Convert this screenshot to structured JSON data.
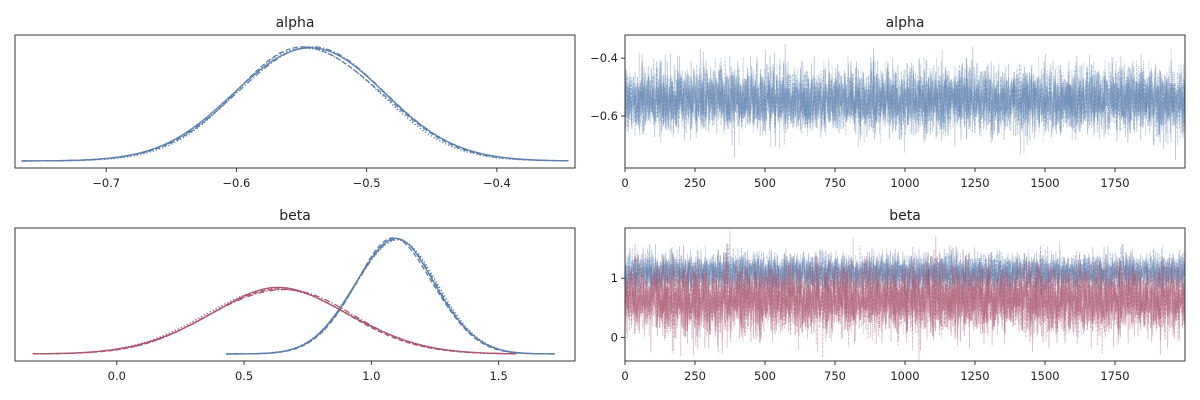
{
  "colors": {
    "blue": "#5a7fae",
    "red": "#a9566e",
    "axis": "#222222"
  },
  "chart_data": [
    {
      "type": "line",
      "panel": "kde",
      "title": "alpha",
      "xlim": [
        -0.77,
        -0.34
      ],
      "xticks": [
        -0.7,
        -0.6,
        -0.5,
        -0.4
      ],
      "xtick_labels": [
        "−0.7",
        "−0.6",
        "−0.5",
        "−0.4"
      ],
      "yticks": [],
      "ytick_labels": [],
      "grid": false,
      "series": [
        {
          "color": "blue",
          "chain_styles": [
            "solid",
            "dashed",
            "dotted",
            "dashdot"
          ],
          "mean": -0.545,
          "sd": 0.055,
          "x_range": [
            -0.765,
            -0.345
          ]
        }
      ]
    },
    {
      "type": "line",
      "panel": "trace",
      "title": "alpha",
      "xlim": [
        0,
        2000
      ],
      "ylim": [
        -0.78,
        -0.32
      ],
      "xticks": [
        0,
        250,
        500,
        750,
        1000,
        1250,
        1500,
        1750
      ],
      "xtick_labels": [
        "0",
        "250",
        "500",
        "750",
        "1000",
        "1250",
        "1500",
        "1750"
      ],
      "yticks": [
        -0.6,
        -0.4
      ],
      "ytick_labels": [
        "−0.6",
        "−0.4"
      ],
      "grid": false,
      "n_draws": 2000,
      "series": [
        {
          "color": "blue",
          "chain_styles": [
            "solid",
            "dashed",
            "dotted",
            "dashdot"
          ],
          "mean": -0.545,
          "sd": 0.055
        }
      ]
    },
    {
      "type": "line",
      "panel": "kde",
      "title": "beta",
      "xlim": [
        -0.4,
        1.8
      ],
      "xticks": [
        0.0,
        0.5,
        1.0,
        1.5
      ],
      "xtick_labels": [
        "0.0",
        "0.5",
        "1.0",
        "1.5"
      ],
      "yticks": [],
      "ytick_labels": [],
      "grid": false,
      "series": [
        {
          "color": "blue",
          "chain_styles": [
            "solid",
            "dashed",
            "dotted",
            "dashdot"
          ],
          "mean": 1.09,
          "sd": 0.16,
          "x_range": [
            0.43,
            1.72
          ]
        },
        {
          "color": "red",
          "chain_styles": [
            "solid",
            "dashed",
            "dotted",
            "dashdot"
          ],
          "mean": 0.63,
          "sd": 0.28,
          "x_range": [
            -0.33,
            1.57
          ]
        }
      ]
    },
    {
      "type": "line",
      "panel": "trace",
      "title": "beta",
      "xlim": [
        0,
        2000
      ],
      "ylim": [
        -0.4,
        1.85
      ],
      "xticks": [
        0,
        250,
        500,
        750,
        1000,
        1250,
        1500,
        1750
      ],
      "xtick_labels": [
        "0",
        "250",
        "500",
        "750",
        "1000",
        "1250",
        "1500",
        "1750"
      ],
      "yticks": [
        0,
        1
      ],
      "ytick_labels": [
        "0",
        "1"
      ],
      "grid": false,
      "n_draws": 2000,
      "series": [
        {
          "color": "blue",
          "chain_styles": [
            "solid",
            "dashed",
            "dotted",
            "dashdot"
          ],
          "mean": 1.09,
          "sd": 0.16
        },
        {
          "color": "red",
          "chain_styles": [
            "solid",
            "dashed",
            "dotted",
            "dashdot"
          ],
          "mean": 0.63,
          "sd": 0.28
        }
      ]
    }
  ]
}
